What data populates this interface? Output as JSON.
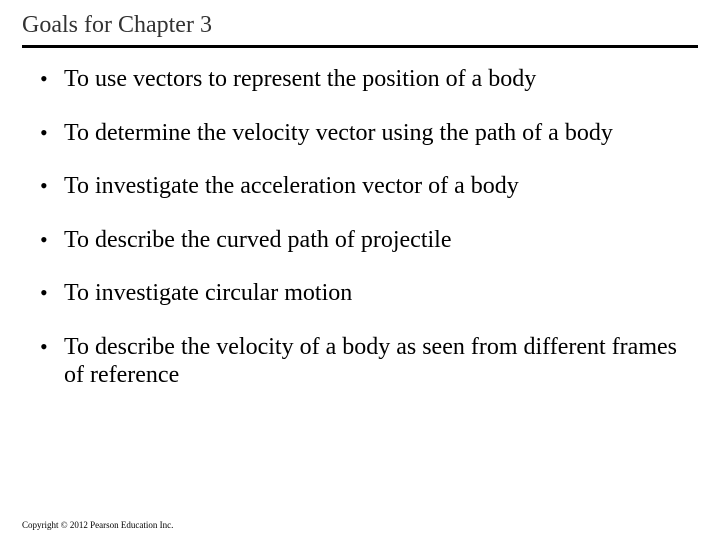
{
  "slide": {
    "title": "Goals for Chapter 3",
    "goals": [
      "To use vectors to represent the position of a body",
      "To determine the velocity vector using the path of a body",
      "To investigate the acceleration vector of a body",
      "To describe the curved path of  projectile",
      "To investigate circular motion",
      "To describe the velocity of a body as seen from different frames of reference"
    ],
    "copyright": "Copyright © 2012 Pearson Education Inc."
  },
  "styling": {
    "background_color": "#ffffff",
    "title_color": "#333333",
    "title_fontsize": 24,
    "title_underline_color": "#000000",
    "title_underline_width": 3,
    "body_color": "#000000",
    "body_fontsize": 24,
    "bullet_char": "•",
    "copyright_fontsize": 9,
    "font_family": "Times New Roman"
  }
}
